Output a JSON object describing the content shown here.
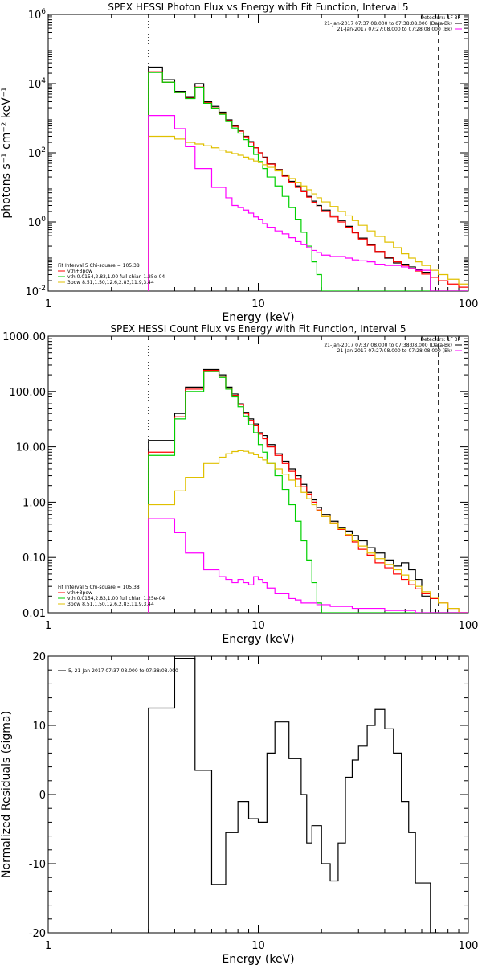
{
  "chart_data": [
    {
      "type": "line",
      "title": "SPEX HESSI Photon Flux vs Energy with Fit Function, Interval 5",
      "xlabel": "Energy (keV)",
      "ylabel": "photons s⁻¹ cm⁻² keV⁻¹",
      "xlim": [
        1,
        100
      ],
      "xscale": "log",
      "ylim": [
        0.01,
        1000000
      ],
      "yscale": "log",
      "x_ticks": [
        {
          "v": 1,
          "label": "1"
        },
        {
          "v": 10,
          "label": "10"
        },
        {
          "v": 100,
          "label": "100"
        }
      ],
      "y_ticks": [
        {
          "v": 0.01,
          "label": "10⁻²"
        },
        {
          "v": 1,
          "label": "10⁰"
        },
        {
          "v": 100,
          "label": "10²"
        },
        {
          "v": 10000,
          "label": "10⁴"
        },
        {
          "v": 1000000,
          "label": "10⁶"
        }
      ],
      "legend_top": [
        "Detectors: 1F 3F",
        "21-Jan-2017 07:37:08.000 to 07:38:08.000 (Data-Bk)",
        "21-Jan-2017 07:27:08.000 to 07:28:08.000 (Bk)"
      ],
      "legend_bottom": [
        "Fit Interval 5   Chi-square = 105.38",
        "vth+3pow",
        "vth 0.0154,2.83,1.00  full chian 1.25e-04",
        "3pow 8.51,1.50,12.6,2.83,11.9,3.44"
      ],
      "vlines": [
        3,
        72
      ],
      "edges": [
        3,
        3.5,
        4,
        4.5,
        5,
        5.5,
        6,
        6.5,
        7,
        7.5,
        8,
        8.5,
        9,
        9.5,
        10,
        10.5,
        11,
        12,
        13,
        14,
        15,
        16,
        17,
        18,
        19,
        20,
        22,
        24,
        26,
        28,
        30,
        33,
        36,
        40,
        44,
        48,
        52,
        56,
        60,
        66,
        72,
        80,
        90,
        100
      ],
      "series": [
        {
          "color": "#000000",
          "values": [
            30000,
            13000,
            6000,
            4000,
            10000,
            3000,
            2200,
            1500,
            900,
            600,
            430,
            300,
            210,
            140,
            100,
            75,
            48,
            33,
            22,
            15,
            11,
            8,
            5.5,
            4,
            3,
            2.2,
            1.5,
            1.1,
            0.75,
            0.5,
            0.34,
            0.22,
            0.14,
            0.09,
            0.065,
            0.06,
            0.05,
            0.042,
            0.035,
            0.01,
            0.01,
            0.01,
            0.01
          ]
        },
        {
          "color": "#ff0000",
          "values": [
            22000,
            11000,
            5500,
            3800,
            8000,
            2800,
            2000,
            1350,
            850,
            580,
            420,
            290,
            200,
            140,
            100,
            72,
            47,
            32,
            21,
            14,
            10,
            7.5,
            5.2,
            3.7,
            2.7,
            2.0,
            1.4,
            1.0,
            0.7,
            0.48,
            0.32,
            0.21,
            0.14,
            0.095,
            0.07,
            0.055,
            0.045,
            0.038,
            0.031,
            0.025,
            0.02,
            0.016,
            0.013
          ]
        },
        {
          "color": "#00d000",
          "values": [
            21000,
            11000,
            5500,
            3700,
            7800,
            2700,
            1950,
            1300,
            800,
            520,
            370,
            240,
            150,
            90,
            56,
            35,
            20,
            11,
            5.5,
            2.6,
            1.2,
            0.5,
            0.2,
            0.07,
            0.03,
            0.01,
            0.01,
            0.01,
            0.01,
            0.01,
            0.01,
            0.01,
            0.01,
            0.01,
            0.01,
            0.01,
            0.01,
            0.01,
            0.01,
            0.01,
            0.01,
            0.01,
            0.01
          ]
        },
        {
          "color": "#e0c000",
          "values": [
            300,
            300,
            250,
            200,
            180,
            160,
            140,
            120,
            105,
            95,
            85,
            75,
            65,
            58,
            52,
            45,
            38,
            30,
            23,
            18,
            14,
            11,
            8.5,
            6.5,
            5,
            3.8,
            2.8,
            2.0,
            1.5,
            1.1,
            0.8,
            0.55,
            0.38,
            0.26,
            0.18,
            0.12,
            0.09,
            0.07,
            0.055,
            0.04,
            0.03,
            0.022,
            0.016
          ]
        },
        {
          "color": "#ff00ff",
          "values": [
            1200,
            1200,
            500,
            150,
            35,
            35,
            10,
            10,
            5,
            3,
            2.6,
            2.2,
            1.8,
            1.4,
            1.2,
            0.9,
            0.7,
            0.55,
            0.45,
            0.35,
            0.27,
            0.22,
            0.18,
            0.15,
            0.13,
            0.11,
            0.1,
            0.1,
            0.09,
            0.08,
            0.075,
            0.07,
            0.06,
            0.055,
            0.055,
            0.05,
            0.045,
            0.04,
            0.04,
            0.01,
            0.01,
            0.01,
            0.01
          ]
        }
      ]
    },
    {
      "type": "line",
      "title": "SPEX HESSI Count Flux vs Energy with Fit Function, Interval 5",
      "xlabel": "Energy (keV)",
      "ylabel": "",
      "xlim": [
        1,
        100
      ],
      "xscale": "log",
      "ylim": [
        0.01,
        1000
      ],
      "yscale": "log",
      "x_ticks": [
        {
          "v": 1,
          "label": "1"
        },
        {
          "v": 10,
          "label": "10"
        },
        {
          "v": 100,
          "label": "100"
        }
      ],
      "y_ticks": [
        {
          "v": 0.01,
          "label": "0.01"
        },
        {
          "v": 0.1,
          "label": "0.10"
        },
        {
          "v": 1,
          "label": "1.00"
        },
        {
          "v": 10,
          "label": "10.00"
        },
        {
          "v": 100,
          "label": "100.00"
        },
        {
          "v": 1000,
          "label": "1000.00"
        }
      ],
      "legend_top": [
        "Detectors: 1F 3F",
        "21-Jan-2017 07:37:08.000 to 07:38:08.000 (Data-Bk)",
        "21-Jan-2017 07:27:08.000 to 07:28:08.000 (Bk)"
      ],
      "legend_bottom": [
        "Fit Interval 5   Chi-square = 105.38",
        "vth+3pow",
        "vth 0.0154,2.83,1.00  full chian 1.25e-04",
        "3pow 8.51,1.50,12.6,2.83,11.9,3.44"
      ],
      "vlines": [
        3,
        72
      ],
      "edges": [
        3,
        3.5,
        4,
        4.5,
        5,
        5.5,
        6,
        6.5,
        7,
        7.5,
        8,
        8.5,
        9,
        9.5,
        10,
        10.5,
        11,
        12,
        13,
        14,
        15,
        16,
        17,
        18,
        19,
        20,
        22,
        24,
        26,
        28,
        30,
        33,
        36,
        40,
        44,
        48,
        52,
        56,
        60,
        66,
        72,
        80,
        90,
        100
      ],
      "series": [
        {
          "color": "#000000",
          "values": [
            13,
            13,
            40,
            120,
            120,
            250,
            250,
            200,
            120,
            90,
            60,
            42,
            32,
            26,
            18,
            16,
            11,
            7.5,
            5.5,
            4,
            3,
            2.1,
            1.5,
            1.1,
            0.8,
            0.6,
            0.45,
            0.35,
            0.3,
            0.25,
            0.2,
            0.15,
            0.12,
            0.09,
            0.07,
            0.08,
            0.06,
            0.04,
            0.02,
            0.01,
            0.01,
            0.01,
            0.01
          ]
        },
        {
          "color": "#ff0000",
          "values": [
            8,
            8,
            35,
            110,
            110,
            240,
            240,
            190,
            115,
            85,
            58,
            40,
            30,
            24,
            17,
            14,
            10,
            7,
            5,
            3.6,
            2.6,
            1.9,
            1.4,
            1.0,
            0.72,
            0.55,
            0.42,
            0.32,
            0.25,
            0.19,
            0.14,
            0.11,
            0.08,
            0.065,
            0.05,
            0.04,
            0.032,
            0.027,
            0.022,
            0.018,
            0.015,
            0.012,
            0.01
          ]
        },
        {
          "color": "#00d000",
          "values": [
            7,
            7,
            32,
            100,
            100,
            230,
            230,
            180,
            110,
            80,
            53,
            36,
            25,
            18,
            11,
            8,
            5,
            3,
            1.7,
            0.9,
            0.45,
            0.2,
            0.09,
            0.035,
            0.015,
            0.01,
            0.01,
            0.01,
            0.01,
            0.01,
            0.01,
            0.01,
            0.01,
            0.01,
            0.01,
            0.01,
            0.01,
            0.01,
            0.01,
            0.01,
            0.01,
            0.01,
            0.01
          ]
        },
        {
          "color": "#e0c000",
          "values": [
            0.9,
            0.9,
            1.6,
            2.8,
            2.8,
            5,
            5,
            6.5,
            7.5,
            8.2,
            8.5,
            8.3,
            7.8,
            7.2,
            6.5,
            5.8,
            5,
            4,
            3.2,
            2.5,
            1.9,
            1.5,
            1.15,
            0.9,
            0.7,
            0.55,
            0.42,
            0.33,
            0.26,
            0.2,
            0.16,
            0.12,
            0.095,
            0.075,
            0.06,
            0.048,
            0.038,
            0.03,
            0.024,
            0.019,
            0.015,
            0.012,
            0.01
          ]
        },
        {
          "color": "#ff00ff",
          "values": [
            0.5,
            0.5,
            0.28,
            0.12,
            0.12,
            0.06,
            0.06,
            0.045,
            0.04,
            0.035,
            0.04,
            0.035,
            0.032,
            0.045,
            0.04,
            0.035,
            0.028,
            0.022,
            0.022,
            0.018,
            0.017,
            0.015,
            0.015,
            0.015,
            0.014,
            0.014,
            0.013,
            0.013,
            0.013,
            0.012,
            0.012,
            0.012,
            0.012,
            0.011,
            0.011,
            0.011,
            0.011,
            0.01,
            0.01,
            0.01,
            0.01,
            0.01,
            0.01
          ]
        }
      ]
    },
    {
      "type": "line",
      "title": "",
      "xlabel": "Energy (keV)",
      "ylabel": "Normalized Residuals (sigma)",
      "xlim": [
        1,
        100
      ],
      "xscale": "log",
      "ylim": [
        -20,
        20
      ],
      "yscale": "linear",
      "x_ticks": [
        {
          "v": 1,
          "label": "1"
        },
        {
          "v": 10,
          "label": "10"
        },
        {
          "v": 100,
          "label": "100"
        }
      ],
      "y_ticks": [
        {
          "v": -20,
          "label": "-20"
        },
        {
          "v": -10,
          "label": "-10"
        },
        {
          "v": 0,
          "label": "0"
        },
        {
          "v": 10,
          "label": "10"
        },
        {
          "v": 20,
          "label": "20"
        }
      ],
      "legend_top": [
        "5, 21-Jan-2017 07:37:08.000 to 07:38:08.000"
      ],
      "edges": [
        3,
        3.5,
        4,
        4.5,
        5,
        5.5,
        6,
        6.5,
        7,
        7.5,
        8,
        8.5,
        9,
        9.5,
        10,
        10.5,
        11,
        12,
        13,
        14,
        15,
        16,
        17,
        18,
        19,
        20,
        22,
        24,
        26,
        28,
        30,
        33,
        36,
        40,
        44,
        48,
        52,
        56,
        60,
        66,
        72
      ],
      "series": [
        {
          "color": "#000000",
          "values": [
            12.5,
            12.5,
            19.7,
            19.7,
            3.5,
            3.5,
            -13,
            -13,
            -5.5,
            -5.5,
            -1,
            -1,
            -3.5,
            -3.5,
            -4,
            -4,
            6,
            10.5,
            10.5,
            5.2,
            5.2,
            0,
            -7,
            -4.5,
            -4.5,
            -10,
            -12.5,
            -7,
            2.5,
            5,
            7,
            10,
            12.3,
            9.5,
            6,
            -1,
            -5.5,
            -12.8,
            -12.8,
            -20
          ]
        }
      ]
    }
  ]
}
